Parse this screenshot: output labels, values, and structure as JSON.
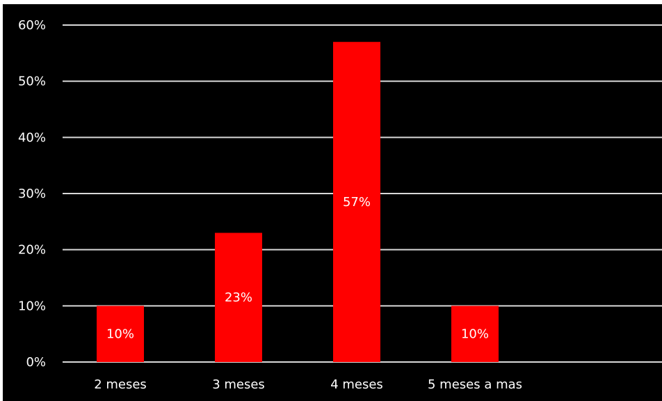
{
  "chart_data": {
    "type": "bar",
    "categories": [
      "2 meses",
      "3 meses",
      "4 meses",
      "5 meses a mas"
    ],
    "values": [
      10,
      23,
      57,
      10
    ],
    "data_labels": [
      "10%",
      "23%",
      "57%",
      "10%"
    ],
    "y_ticks": [
      "0%",
      "10%",
      "20%",
      "30%",
      "40%",
      "50%",
      "60%"
    ],
    "ylim": [
      0,
      60
    ],
    "grid": true,
    "legend": "none",
    "title": "",
    "xlabel": "",
    "ylabel": "",
    "colors": {
      "background": "#000000",
      "bar": "#ff0000",
      "grid": "#d9d9d9",
      "text": "#ffffff"
    }
  }
}
